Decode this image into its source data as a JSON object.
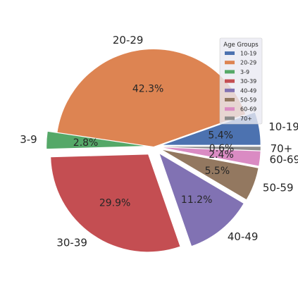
{
  "chart_data": {
    "type": "pie",
    "title": "",
    "legend_title": "Age Groups",
    "legend_position": "top-right",
    "slices": [
      {
        "label": "10-19",
        "value": 5.4,
        "value_label": "5.4%",
        "color": "#4c72b0"
      },
      {
        "label": "20-29",
        "value": 42.3,
        "value_label": "42.3%",
        "color": "#dd8452"
      },
      {
        "label": "3-9",
        "value": 2.8,
        "value_label": "2.8%",
        "color": "#55a868"
      },
      {
        "label": "30-39",
        "value": 29.9,
        "value_label": "29.9%",
        "color": "#c44e52"
      },
      {
        "label": "40-49",
        "value": 11.2,
        "value_label": "11.2%",
        "color": "#8172b3"
      },
      {
        "label": "50-59",
        "value": 5.5,
        "value_label": "5.5%",
        "color": "#937860"
      },
      {
        "label": "60-69",
        "value": 2.4,
        "value_label": "2.4%",
        "color": "#da8bc3"
      },
      {
        "label": "70+",
        "value": 0.6,
        "value_label": "0.6%",
        "color": "#8c8c8c"
      }
    ],
    "legend_order": [
      "10-19",
      "20-29",
      "3-9",
      "30-39",
      "40-49",
      "50-59",
      "60-69",
      "70+"
    ]
  }
}
